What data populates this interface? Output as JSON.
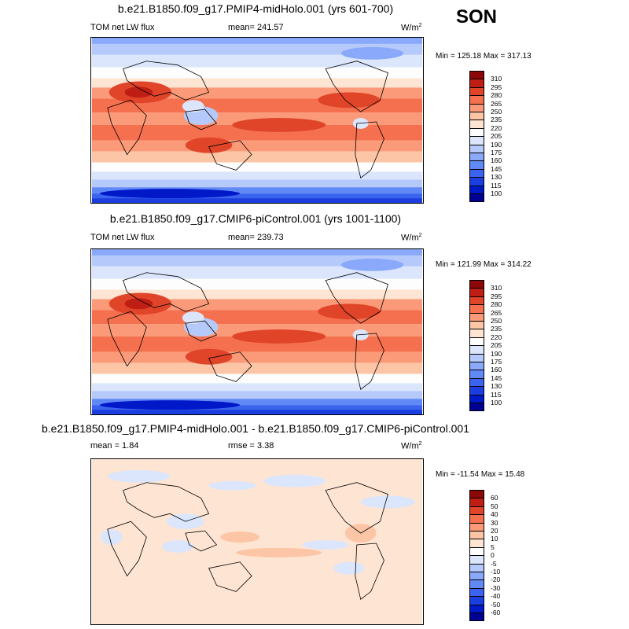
{
  "season": "SON",
  "panels": [
    {
      "title": "b.e21.B1850.f09_g17.PMIP4-midHolo.001 (yrs 601-700)",
      "left_label": "TOM net LW flux",
      "center_label": "mean= 241.57",
      "units": "W/m",
      "units_sup": "2",
      "minmax": "Min = 125.18 Max = 317.13"
    },
    {
      "title": "b.e21.B1850.f09_g17.CMIP6-piControl.001 (yrs 1001-1100)",
      "left_label": "TOM net LW flux",
      "center_label": "mean= 239.73",
      "units": "W/m",
      "units_sup": "2",
      "minmax": "Min = 121.99 Max = 314.22"
    },
    {
      "title": "b.e21.B1850.f09_g17.PMIP4-midHolo.001 - b.e21.B1850.f09_g17.CMIP6-piControl.001",
      "left_label": "mean =   1.84",
      "center_label": "rmse =   3.38",
      "units": "W/m",
      "units_sup": "2",
      "minmax": "Min = -11.54 Max =  15.48"
    }
  ],
  "chart_data": [
    {
      "type": "heatmap",
      "title": "b.e21.B1850.f09_g17.PMIP4-midHolo.001 (yrs 601-700)",
      "variable": "TOM net LW flux",
      "units": "W/m2",
      "mean": 241.57,
      "min": 125.18,
      "max": 317.13,
      "colorbar_levels": [
        100,
        115,
        130,
        145,
        160,
        175,
        190,
        205,
        220,
        235,
        250,
        265,
        280,
        295,
        310
      ],
      "colorbar_colors": [
        "#000093",
        "#0019c8",
        "#1a3ee0",
        "#3a64ef",
        "#6189f6",
        "#8aa9fa",
        "#b5c9fb",
        "#dbe6fc",
        "#fdfdfd",
        "#fee4d2",
        "#fcc5a6",
        "#fa9a78",
        "#f5704e",
        "#e04429",
        "#bf1e14",
        "#8c0808"
      ]
    },
    {
      "type": "heatmap",
      "title": "b.e21.B1850.f09_g17.CMIP6-piControl.001 (yrs 1001-1100)",
      "variable": "TOM net LW flux",
      "units": "W/m2",
      "mean": 239.73,
      "min": 121.99,
      "max": 314.22,
      "colorbar_levels": [
        100,
        115,
        130,
        145,
        160,
        175,
        190,
        205,
        220,
        235,
        250,
        265,
        280,
        295,
        310
      ],
      "colorbar_colors": [
        "#000093",
        "#0019c8",
        "#1a3ee0",
        "#3a64ef",
        "#6189f6",
        "#8aa9fa",
        "#b5c9fb",
        "#dbe6fc",
        "#fdfdfd",
        "#fee4d2",
        "#fcc5a6",
        "#fa9a78",
        "#f5704e",
        "#e04429",
        "#bf1e14",
        "#8c0808"
      ]
    },
    {
      "type": "heatmap",
      "title": "b.e21.B1850.f09_g17.PMIP4-midHolo.001 - b.e21.B1850.f09_g17.CMIP6-piControl.001",
      "units": "W/m2",
      "mean": 1.84,
      "rmse": 3.38,
      "min": -11.54,
      "max": 15.48,
      "colorbar_levels": [
        -60,
        -50,
        -40,
        -30,
        -20,
        -10,
        -5,
        0,
        5,
        10,
        20,
        30,
        40,
        50,
        60
      ],
      "colorbar_colors": [
        "#000093",
        "#0019c8",
        "#1a3ee0",
        "#3a64ef",
        "#6189f6",
        "#8aa9fa",
        "#b5c9fb",
        "#dbe6fc",
        "#fdfdfd",
        "#fee4d2",
        "#fcc5a6",
        "#fa9a78",
        "#f5704e",
        "#e04429",
        "#bf1e14",
        "#8c0808"
      ]
    }
  ]
}
